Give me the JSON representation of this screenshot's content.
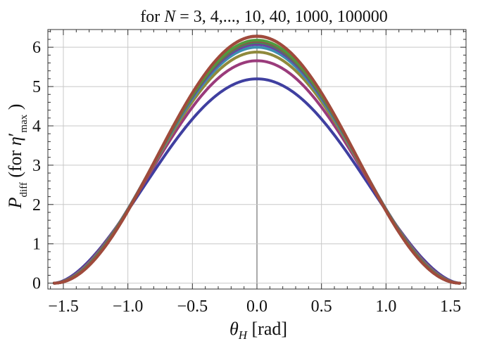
{
  "chart_data": {
    "type": "line",
    "title": "for N = 3, 4,..., 10, 40, 1000, 100000",
    "title_parts": {
      "prefix": "for ",
      "var": "N",
      "rest": " = 3, 4,..., 10, 40, 1000, 100000"
    },
    "xlabel": "θ_H [rad]",
    "xlabel_parts": {
      "var": "θ",
      "sub": "H",
      "rest": " [rad]"
    },
    "ylabel": "P_diff (for η′_max )",
    "ylabel_parts": {
      "var": "P",
      "sub": "diff",
      "mid": " (for ",
      "eta": "η",
      "prime": "′",
      "sub2": "max",
      "end": " )"
    },
    "xlim": [
      -1.62,
      1.62
    ],
    "ylim": [
      -0.15,
      6.45
    ],
    "x_ticks": [
      -1.5,
      -1.0,
      -0.5,
      0.0,
      0.5,
      1.0,
      1.5
    ],
    "x_tick_labels": [
      "−1.5",
      "−1.0",
      "−0.5",
      "0.0",
      "0.5",
      "1.0",
      "1.5"
    ],
    "y_ticks": [
      0,
      1,
      2,
      3,
      4,
      5,
      6
    ],
    "y_tick_labels": [
      "0",
      "1",
      "2",
      "3",
      "4",
      "5",
      "6"
    ],
    "grid": true,
    "legend": "none",
    "x_domain": [
      -1.5708,
      1.5708
    ],
    "series": [
      {
        "color": "#3f3fa0",
        "peak": 5.196,
        "shape_exp": 0.72
      },
      {
        "color": "#9a3b7b",
        "peak": 5.657,
        "shape_exp": 0.82
      },
      {
        "color": "#8f8a3c",
        "peak": 5.878,
        "shape_exp": 0.87
      },
      {
        "color": "#3d8fb0",
        "peak": 6.0,
        "shape_exp": 0.9
      },
      {
        "color": "#6d3fa0",
        "peak": 6.073,
        "shape_exp": 0.92
      },
      {
        "color": "#3e8f55",
        "peak": 6.123,
        "shape_exp": 0.94
      },
      {
        "color": "#a13e50",
        "peak": 6.156,
        "shape_exp": 0.95
      },
      {
        "color": "#4f9a3e",
        "peak": 6.18,
        "shape_exp": 0.96
      },
      {
        "color": "#9c5a3a",
        "peak": 6.276,
        "shape_exp": 0.99
      },
      {
        "color": "#8a4f3a",
        "peak": 6.283,
        "shape_exp": 1.0
      },
      {
        "color": "#a04a3c",
        "peak": 6.283,
        "shape_exp": 1.0
      }
    ]
  }
}
